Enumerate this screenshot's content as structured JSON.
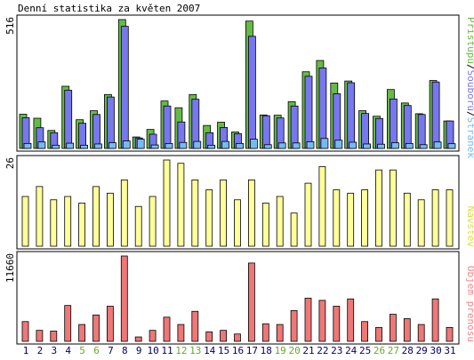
{
  "chart_data": {
    "type": "bar",
    "title": "Denní statistika za květen 2007",
    "categories": [
      "1",
      "2",
      "3",
      "4",
      "5",
      "6",
      "7",
      "8",
      "9",
      "10",
      "11",
      "12",
      "13",
      "14",
      "15",
      "16",
      "17",
      "18",
      "19",
      "20",
      "21",
      "22",
      "23",
      "24",
      "25",
      "26",
      "27",
      "28",
      "29",
      "30",
      "31"
    ],
    "weekend_days": [
      "5",
      "6",
      "12",
      "13",
      "19",
      "20",
      "26",
      "27"
    ],
    "colors": {
      "pristupu": "#66bb44",
      "souboru": "#7777ee",
      "stranek": "#77bbee",
      "navstev": "#ffff99",
      "objem": "#ee7777",
      "weekend_label": "#66aa22",
      "weekday_label": "#000066",
      "frame": "#000000"
    },
    "panels": [
      {
        "id": "traffic",
        "ymax_label": "516",
        "ylim": [
          0,
          516
        ],
        "legend": [
          "Stránek",
          "Souborů",
          "Přístupů"
        ],
        "legend_separator": "/",
        "series": [
          {
            "name": "Přístupů",
            "values": [
              137,
              121,
              72,
              249,
              115,
              151,
              216,
              516,
              46,
              76,
              190,
              163,
              216,
              92,
              105,
              66,
              510,
              134,
              133,
              187,
              307,
              352,
              262,
              270,
              151,
              129,
              236,
              182,
              139,
              272,
              110
            ]
          },
          {
            "name": "Souborů",
            "values": [
              123,
              83,
              63,
              233,
              101,
              136,
              206,
              489,
              42,
              57,
              170,
              106,
              197,
              63,
              84,
              59,
              449,
              131,
              122,
              170,
              289,
              322,
              219,
              263,
              140,
              120,
              198,
              172,
              136,
              266,
              110
            ]
          },
          {
            "name": "Stránek",
            "values": [
              20,
              26,
              13,
              21,
              13,
              18,
              23,
              30,
              37,
              14,
              20,
              24,
              28,
              13,
              28,
              20,
              37,
              15,
              22,
              22,
              27,
              40,
              33,
              25,
              18,
              17,
              23,
              20,
              15,
              26,
              19
            ]
          }
        ]
      },
      {
        "id": "visits",
        "ymax_label": "26",
        "ylim": [
          0,
          26
        ],
        "legend": [
          "Návštěv"
        ],
        "series": [
          {
            "name": "Návštěv",
            "values": [
              15,
              18,
              14,
              15,
              13,
              18,
              16,
              20,
              12,
              15,
              26,
              25,
              20,
              17,
              20,
              14,
              20,
              13,
              15,
              10,
              19,
              24,
              17,
              16,
              17,
              23,
              23,
              16,
              14,
              17,
              17
            ]
          }
        ]
      },
      {
        "id": "volume",
        "ymax_label": "11660",
        "ylim": [
          0,
          11660
        ],
        "legend": [
          "Objem přenosu"
        ],
        "series": [
          {
            "name": "Objem přenosu",
            "values": [
              2700,
              1500,
              1400,
              4900,
              2300,
              3600,
              4800,
              11660,
              600,
              1500,
              3300,
              2300,
              4100,
              1300,
              1500,
              1000,
              10700,
              2400,
              2300,
              4200,
              5900,
              5600,
              4800,
              5800,
              2700,
              1900,
              3700,
              3100,
              2300,
              5800,
              1900
            ]
          }
        ]
      }
    ]
  }
}
